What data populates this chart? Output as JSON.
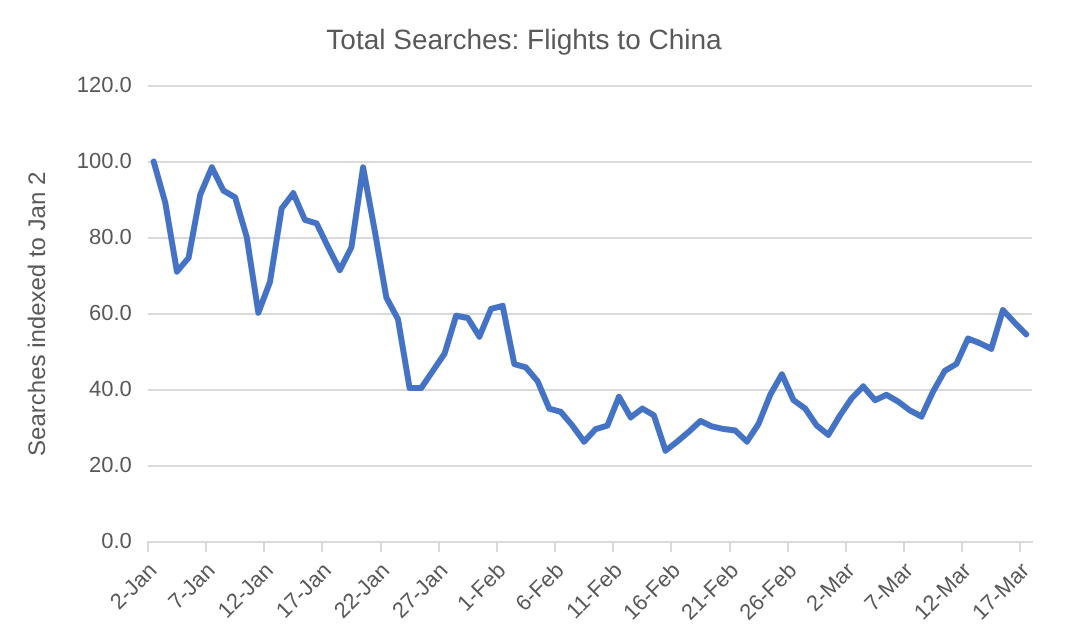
{
  "chart_data": {
    "type": "line",
    "title": "Total Searches: Flights to China",
    "ylabel": "Searches indexed to Jan 2",
    "categories": [
      "2-Jan",
      null,
      null,
      null,
      null,
      "7-Jan",
      null,
      null,
      null,
      null,
      "12-Jan",
      null,
      null,
      null,
      null,
      "17-Jan",
      null,
      null,
      null,
      null,
      "22-Jan",
      null,
      null,
      null,
      null,
      "27-Jan",
      null,
      null,
      null,
      null,
      "1-Feb",
      null,
      null,
      null,
      null,
      "6-Feb",
      null,
      null,
      null,
      null,
      "11-Feb",
      null,
      null,
      null,
      null,
      "16-Feb",
      null,
      null,
      null,
      null,
      "21-Feb",
      null,
      null,
      null,
      null,
      "26-Feb",
      null,
      null,
      null,
      null,
      "2-Mar",
      null,
      null,
      null,
      null,
      "7-Mar",
      null,
      null,
      null,
      null,
      "12-Mar",
      null,
      null,
      null,
      null,
      "17-Mar"
    ],
    "series": [
      {
        "color": "#4472c4",
        "values": [
          100,
          89.2,
          71.1,
          74.7,
          91.3,
          98.5,
          92.4,
          90.6,
          80.2,
          60.3,
          68.4,
          87.7,
          91.7,
          84.7,
          83.8,
          77.5,
          71.5,
          77.5,
          98.5,
          81.9,
          64.3,
          58.6,
          40.5,
          40.5,
          45,
          49.5,
          59.5,
          58.9,
          54,
          61.3,
          62.1,
          46.8,
          45.9,
          42.3,
          35.1,
          34.2,
          30.6,
          26.4,
          29.7,
          30.6,
          38.2,
          32.8,
          35.1,
          33.3,
          24,
          26.4,
          29,
          31.8,
          30.4,
          29.7,
          29.3,
          26.4,
          31.1,
          38.7,
          44.1,
          37.3,
          35.1,
          30.6,
          28.2,
          33.3,
          37.8,
          40.9,
          37.3,
          38.7,
          36.9,
          34.6,
          33,
          39.6,
          45,
          46.8,
          53.5,
          52.3,
          50.8,
          61,
          57.7,
          54.6
        ]
      }
    ],
    "ylim": [
      0,
      120
    ],
    "yticks": [
      {
        "value": 0,
        "label": "0.0"
      },
      {
        "value": 20,
        "label": "20.0"
      },
      {
        "value": 40,
        "label": "40.0"
      },
      {
        "value": 60,
        "label": "60.0"
      },
      {
        "value": 80,
        "label": "80.0"
      },
      {
        "value": 100,
        "label": "100.0"
      },
      {
        "value": 120,
        "label": "120.0"
      }
    ],
    "grid": "y",
    "legend": false,
    "marker": "none",
    "line_style": "solid"
  }
}
